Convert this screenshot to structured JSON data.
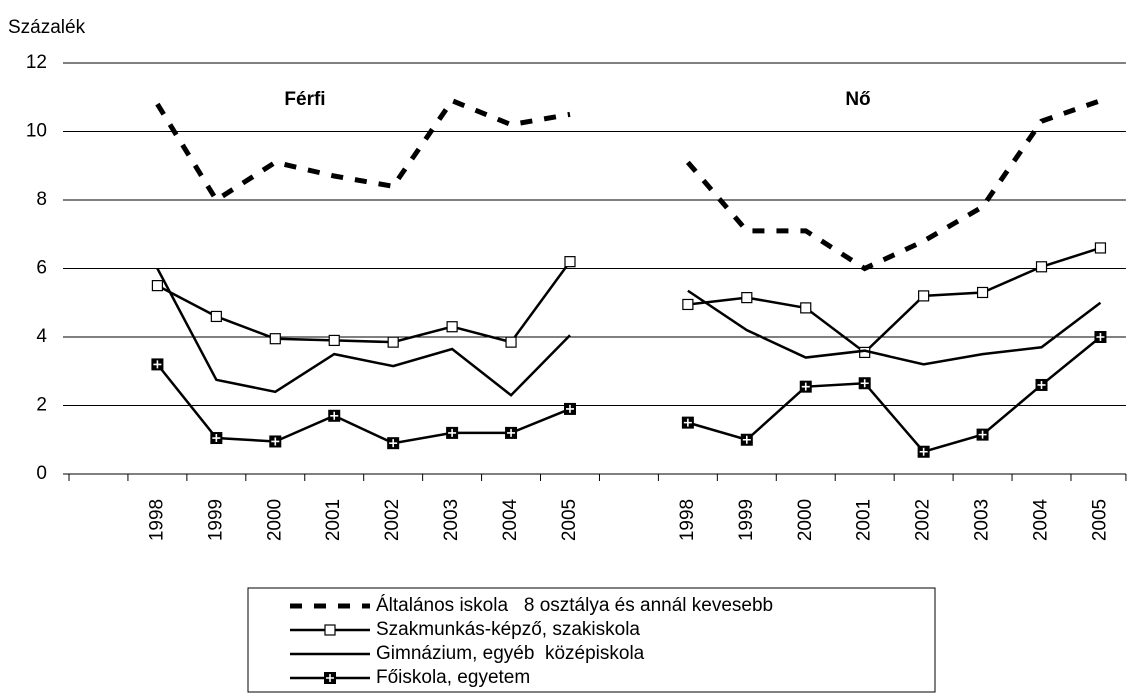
{
  "chart_data": {
    "type": "line",
    "y_label": "Százalék",
    "annotations": [
      "Férfi",
      "Nő"
    ],
    "categories": [
      null,
      "1998",
      "1999",
      "2000",
      "2001",
      "2002",
      "2003",
      "2004",
      "2005",
      null,
      "1998",
      "1999",
      "2000",
      "2001",
      "2002",
      "2003",
      "2004",
      "2005"
    ],
    "series": [
      {
        "name": "Általános iskola   8 osztálya és annál kevesebb",
        "color": "#000000",
        "dashed": true,
        "marker": null,
        "values": [
          null,
          10.8,
          8.0,
          9.1,
          8.7,
          8.4,
          10.9,
          10.2,
          10.5,
          null,
          9.1,
          7.1,
          7.1,
          6.0,
          6.8,
          7.8,
          10.3,
          10.9
        ]
      },
      {
        "name": "Szakmunkás-képző, szakiskola",
        "color": "#000000",
        "dashed": false,
        "marker": "square",
        "values": [
          null,
          5.5,
          4.6,
          3.95,
          3.9,
          3.85,
          4.3,
          3.85,
          6.2,
          null,
          4.95,
          5.15,
          4.85,
          3.55,
          5.2,
          5.3,
          6.05,
          6.6
        ]
      },
      {
        "name": "Gimnázium, egyéb  középiskola",
        "color": "#000000",
        "dashed": false,
        "marker": null,
        "values": [
          null,
          6.0,
          2.75,
          2.4,
          3.5,
          3.15,
          3.65,
          2.3,
          4.05,
          null,
          5.35,
          4.2,
          3.4,
          3.6,
          3.2,
          3.5,
          3.7,
          5.0
        ]
      },
      {
        "name": "Főiskola, egyetem",
        "color": "#000000",
        "dashed": false,
        "marker": "plus",
        "values": [
          null,
          3.2,
          1.05,
          0.95,
          1.7,
          0.9,
          1.2,
          1.2,
          1.9,
          null,
          1.5,
          1.0,
          2.55,
          2.65,
          0.65,
          1.15,
          2.6,
          4.0
        ]
      }
    ],
    "ylim": [
      0,
      12
    ],
    "yticks": [
      0,
      2,
      4,
      6,
      8,
      10,
      12
    ],
    "grid": true,
    "legend": "bottom"
  }
}
